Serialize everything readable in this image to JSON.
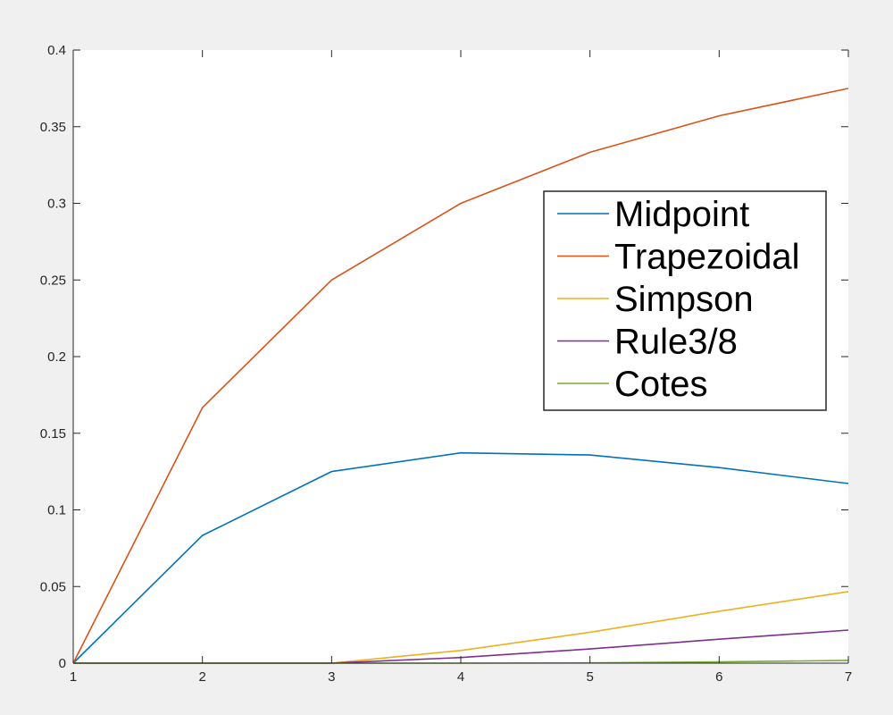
{
  "chart_data": {
    "type": "line",
    "title": "",
    "xlabel": "",
    "ylabel": "",
    "xlim": [
      1,
      7
    ],
    "ylim": [
      0,
      0.4
    ],
    "grid": false,
    "legend_position": "upper-right",
    "x": [
      1,
      2,
      3,
      4,
      5,
      6,
      7
    ],
    "xticks": [
      "1",
      "2",
      "3",
      "4",
      "5",
      "6",
      "7"
    ],
    "yticks": [
      "0",
      "0.05",
      "0.1",
      "0.15",
      "0.2",
      "0.25",
      "0.3",
      "0.35",
      "0.4"
    ],
    "ytick_values": [
      0,
      0.05,
      0.1,
      0.15,
      0.2,
      0.25,
      0.3,
      0.35,
      0.4
    ],
    "series": [
      {
        "name": "Midpoint",
        "color": "#0072bd",
        "values": [
          0,
          0.0833,
          0.125,
          0.1372,
          0.1358,
          0.1276,
          0.1172
        ]
      },
      {
        "name": "Trapezoidal",
        "color": "#d95319",
        "values": [
          0,
          0.1667,
          0.25,
          0.3,
          0.3333,
          0.3571,
          0.375
        ]
      },
      {
        "name": "Simpson",
        "color": "#edb120",
        "values": [
          0,
          0,
          0,
          0.0083,
          0.0202,
          0.0339,
          0.0467
        ]
      },
      {
        "name": "Rule3/8",
        "color": "#7e2f8e",
        "values": [
          0,
          0,
          0,
          0.0037,
          0.0093,
          0.0156,
          0.0216
        ]
      },
      {
        "name": "Cotes",
        "color": "#77ac30",
        "values": [
          0,
          0,
          0,
          0,
          0.0002,
          0.0008,
          0.0018
        ]
      }
    ]
  }
}
